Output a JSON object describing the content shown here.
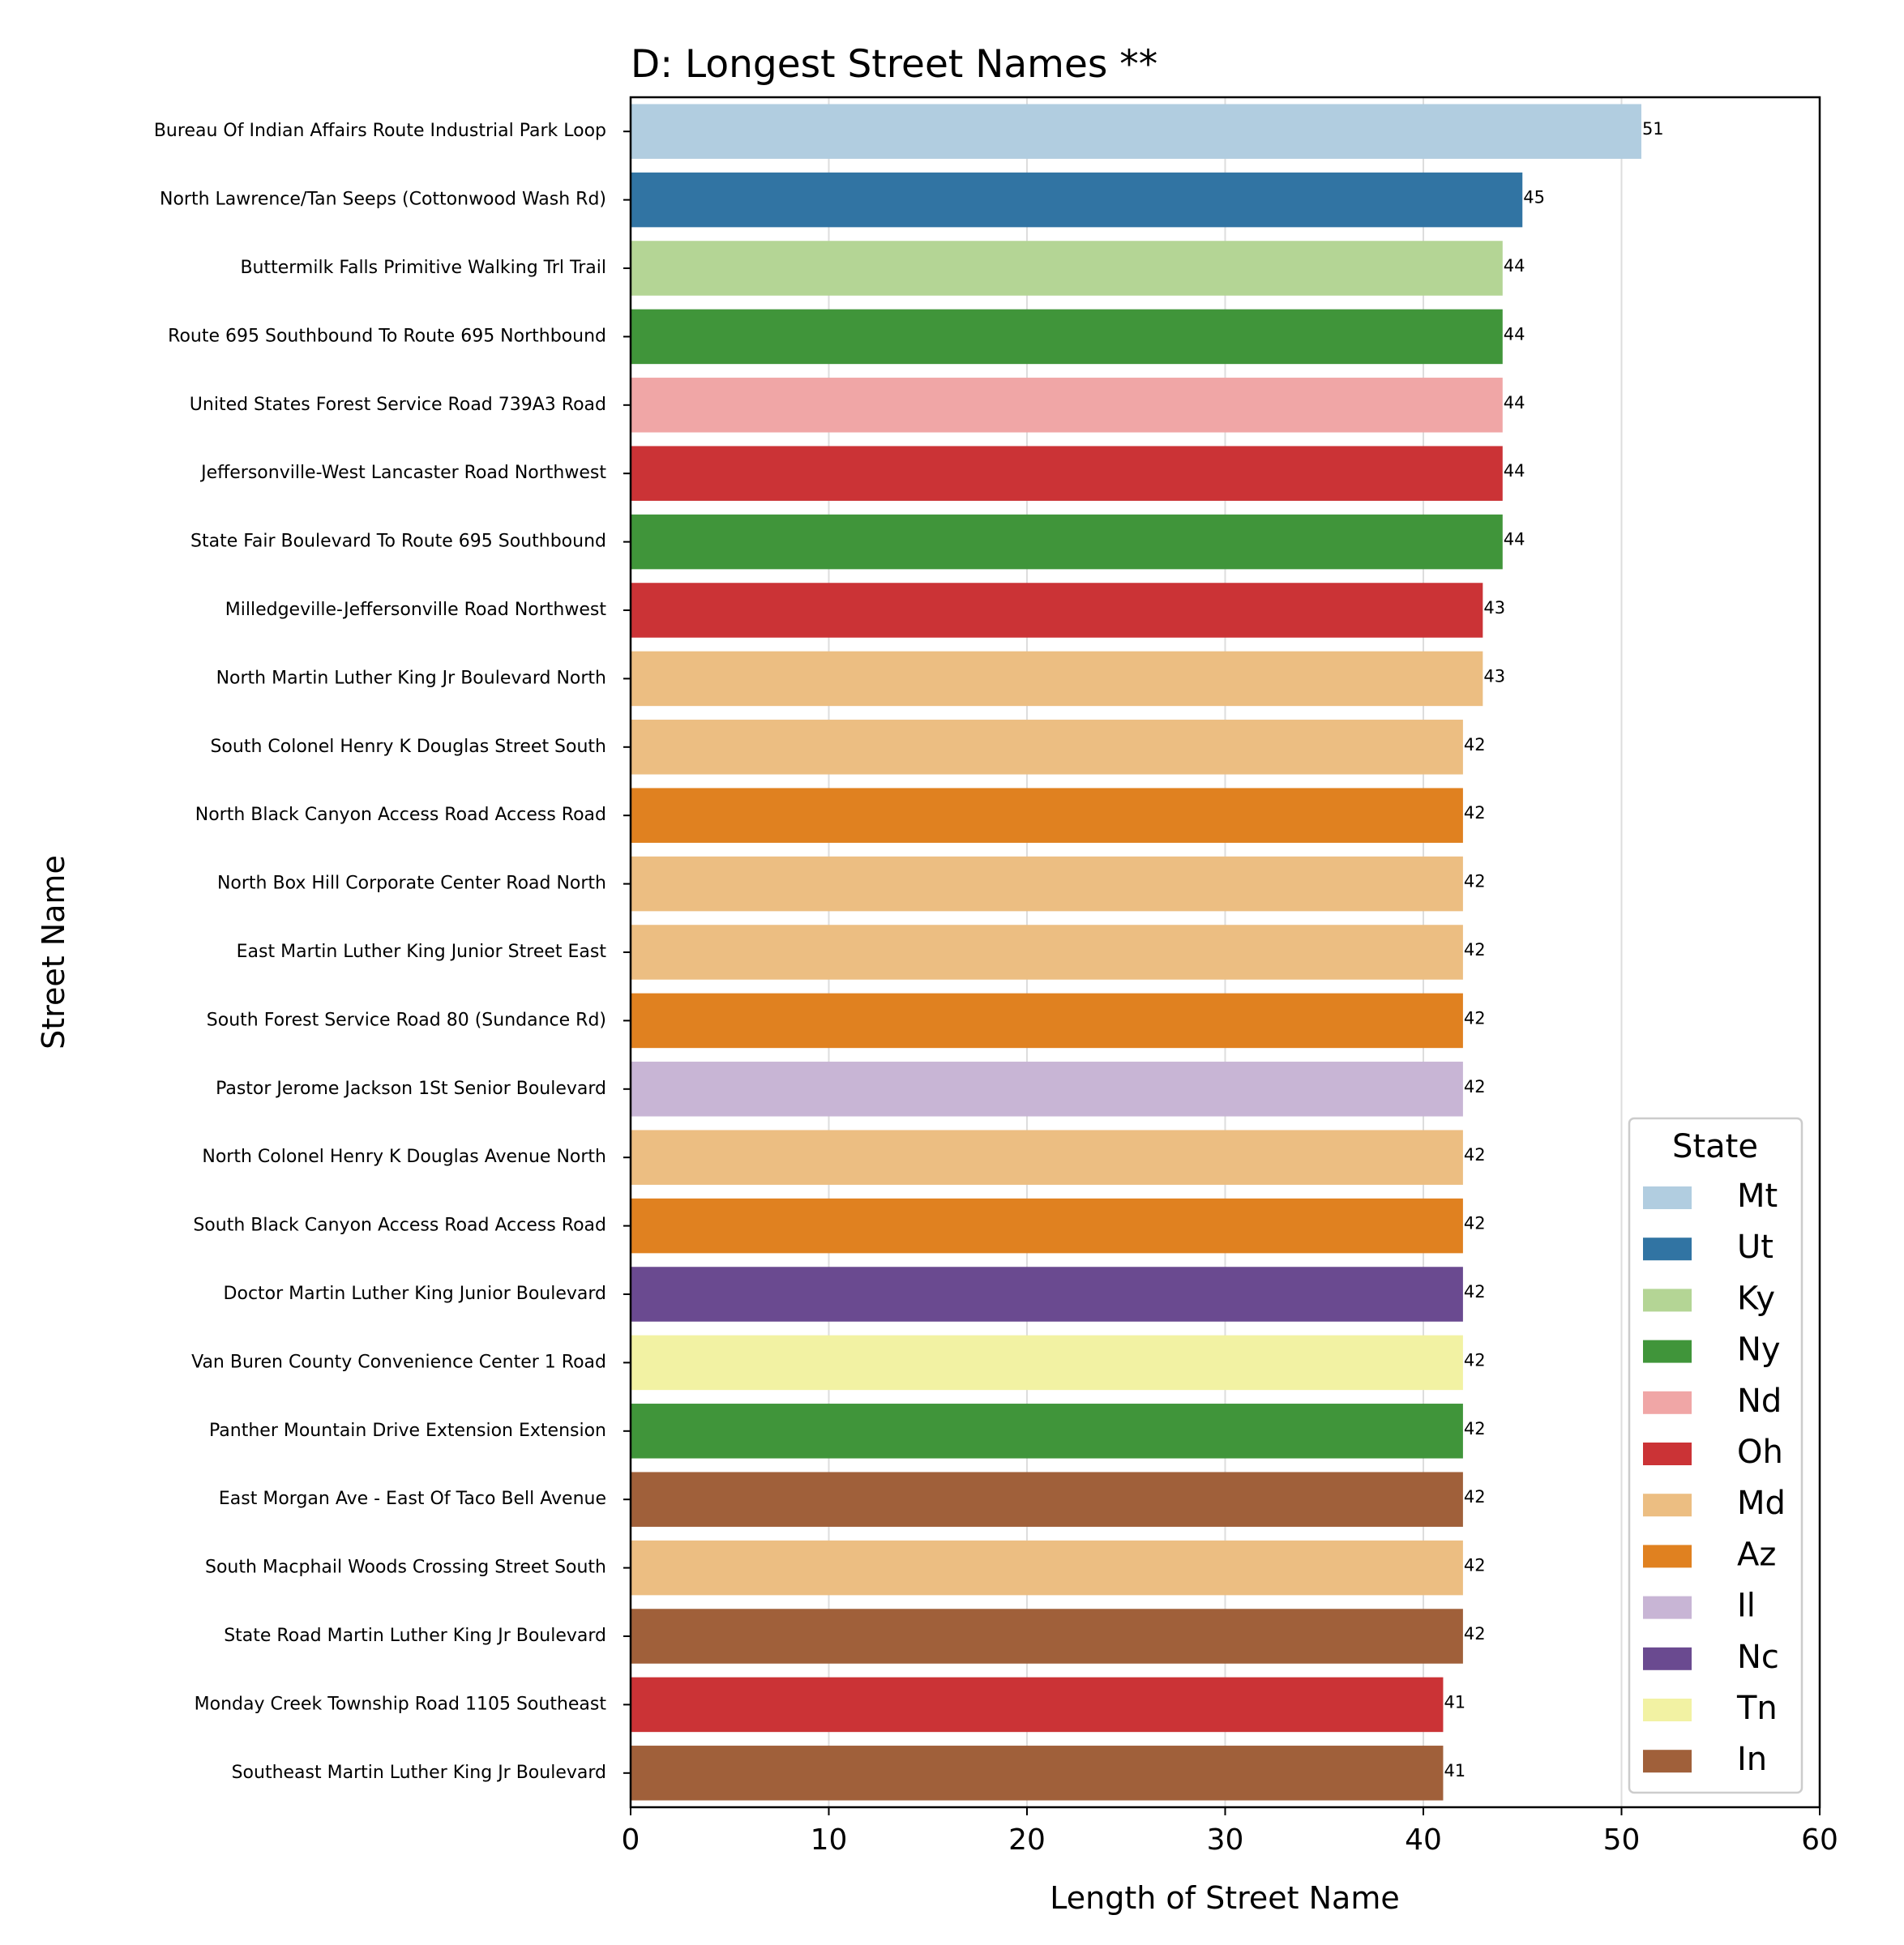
{
  "chart_data": {
    "type": "bar",
    "orientation": "horizontal",
    "title": "D: Longest Street Names **",
    "xlabel": "Length of Street Name",
    "ylabel": "Street Name",
    "xlim": [
      0,
      60
    ],
    "xticks": [
      0,
      10,
      20,
      30,
      40,
      50,
      60
    ],
    "grid": "x",
    "legend": {
      "title": "State",
      "placement": "lower-right",
      "entries": [
        {
          "label": "Mt",
          "color": "#b1cde0"
        },
        {
          "label": "Ut",
          "color": "#3174a3"
        },
        {
          "label": "Ky",
          "color": "#b4d595"
        },
        {
          "label": "Ny",
          "color": "#40953a"
        },
        {
          "label": "Nd",
          "color": "#f0a6a6"
        },
        {
          "label": "Oh",
          "color": "#cb3336"
        },
        {
          "label": "Md",
          "color": "#ecbe82"
        },
        {
          "label": "Az",
          "color": "#e08120"
        },
        {
          "label": "Il",
          "color": "#c8b5d5"
        },
        {
          "label": "Nc",
          "color": "#6a4a90"
        },
        {
          "label": "Tn",
          "color": "#f2f2a3"
        },
        {
          "label": "In",
          "color": "#a0603a"
        }
      ]
    },
    "bars": [
      {
        "category": "Bureau Of Indian Affairs Route Industrial Park Loop",
        "value": 51,
        "state": "Mt"
      },
      {
        "category": "North Lawrence/Tan Seeps (Cottonwood Wash Rd)",
        "value": 45,
        "state": "Ut"
      },
      {
        "category": "Buttermilk Falls Primitive Walking Trl Trail",
        "value": 44,
        "state": "Ky"
      },
      {
        "category": "Route 695 Southbound To Route 695 Northbound",
        "value": 44,
        "state": "Ny"
      },
      {
        "category": "United States Forest Service Road 739A3 Road",
        "value": 44,
        "state": "Nd"
      },
      {
        "category": "Jeffersonville-West Lancaster Road Northwest",
        "value": 44,
        "state": "Oh"
      },
      {
        "category": "State Fair Boulevard To Route 695 Southbound",
        "value": 44,
        "state": "Ny"
      },
      {
        "category": "Milledgeville-Jeffersonville Road Northwest",
        "value": 43,
        "state": "Oh"
      },
      {
        "category": "North Martin Luther King Jr Boulevard North",
        "value": 43,
        "state": "Md"
      },
      {
        "category": "South Colonel Henry K Douglas Street South",
        "value": 42,
        "state": "Md"
      },
      {
        "category": "North Black Canyon Access Road Access Road",
        "value": 42,
        "state": "Az"
      },
      {
        "category": "North Box Hill Corporate Center Road North",
        "value": 42,
        "state": "Md"
      },
      {
        "category": "East Martin Luther King Junior Street East",
        "value": 42,
        "state": "Md"
      },
      {
        "category": "South Forest Service Road 80 (Sundance Rd)",
        "value": 42,
        "state": "Az"
      },
      {
        "category": "Pastor Jerome Jackson 1St Senior Boulevard",
        "value": 42,
        "state": "Il"
      },
      {
        "category": "North Colonel Henry K Douglas Avenue North",
        "value": 42,
        "state": "Md"
      },
      {
        "category": "South Black Canyon Access Road Access Road",
        "value": 42,
        "state": "Az"
      },
      {
        "category": "Doctor Martin Luther King Junior Boulevard",
        "value": 42,
        "state": "Nc"
      },
      {
        "category": "Van Buren County Convenience Center 1 Road",
        "value": 42,
        "state": "Tn"
      },
      {
        "category": "Panther Mountain Drive Extension Extension",
        "value": 42,
        "state": "Ny"
      },
      {
        "category": "East Morgan Ave - East Of Taco Bell Avenue",
        "value": 42,
        "state": "In"
      },
      {
        "category": "South Macphail Woods Crossing Street South",
        "value": 42,
        "state": "Md"
      },
      {
        "category": "State Road Martin Luther King Jr Boulevard",
        "value": 42,
        "state": "In"
      },
      {
        "category": "Monday Creek Township Road 1105 Southeast",
        "value": 41,
        "state": "Oh"
      },
      {
        "category": "Southeast Martin Luther King Jr Boulevard",
        "value": 41,
        "state": "In"
      }
    ]
  }
}
